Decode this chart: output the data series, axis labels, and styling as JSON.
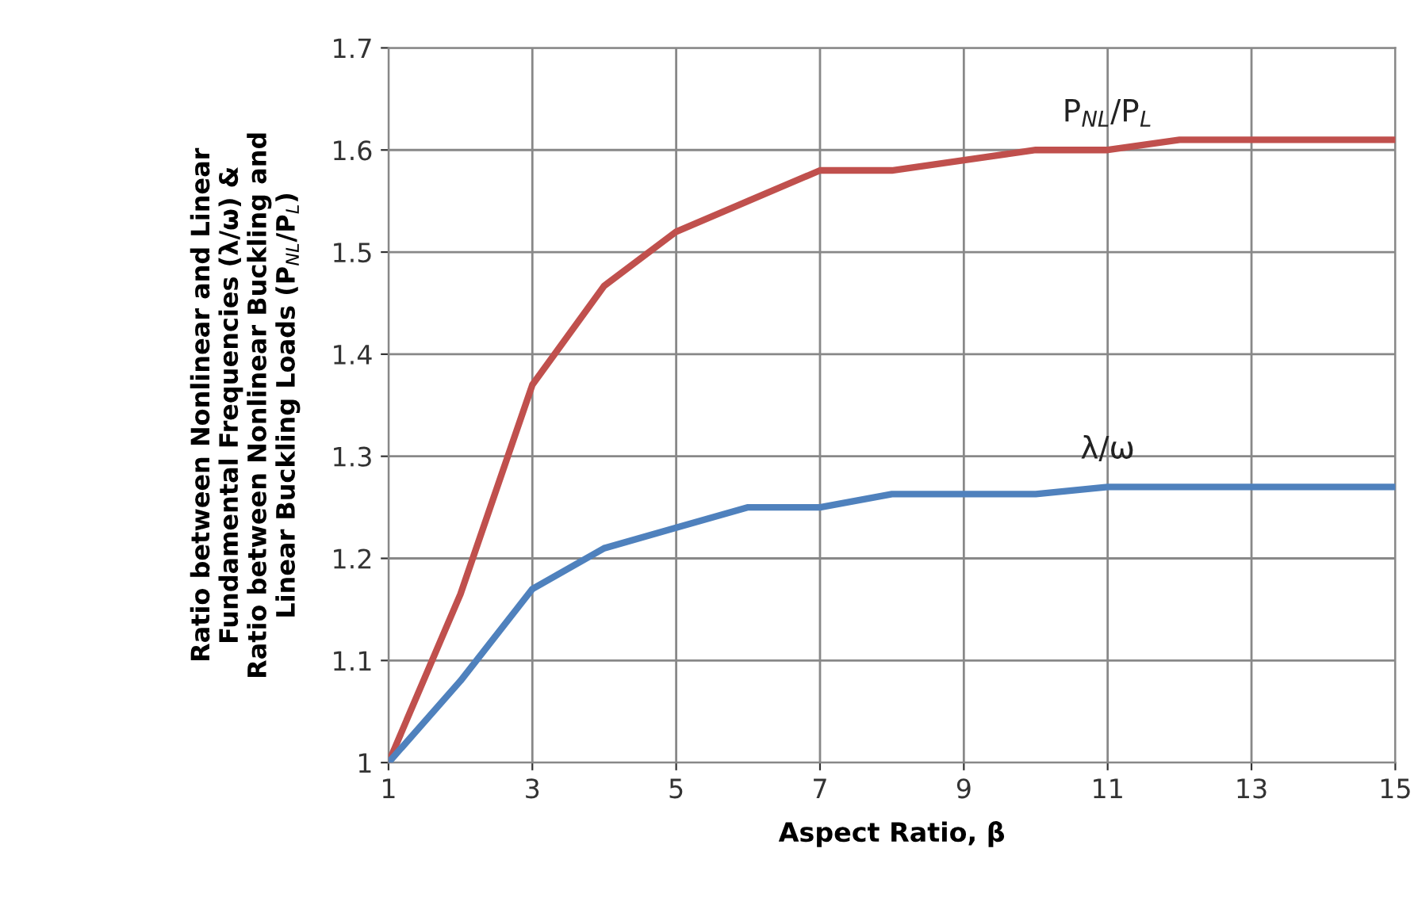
{
  "chart_data": {
    "type": "line",
    "xlabel": "Aspect Ratio, β",
    "ylabel": "Ratio between Nonlinear and Linear\nFundamental Frequencies (λ/ω) &\nRatio between Nonlinear Buckling and\nLinear Buckling Loads (P$_{NL}$/P$_{L}$)",
    "x": [
      1,
      2,
      3,
      4,
      5,
      6,
      7,
      8,
      9,
      10,
      11,
      12,
      13,
      14,
      15
    ],
    "series": [
      {
        "name": "P$_{NL}$/P$_{L}$",
        "color": "#c0504d",
        "values": [
          1.0,
          1.165,
          1.37,
          1.467,
          1.52,
          1.55,
          1.58,
          1.58,
          1.59,
          1.6,
          1.6,
          1.61,
          1.61,
          1.61,
          1.61
        ]
      },
      {
        "name": "λ/ω",
        "color": "#4f81bd",
        "values": [
          1.0,
          1.08,
          1.17,
          1.21,
          1.23,
          1.25,
          1.25,
          1.263,
          1.263,
          1.263,
          1.27,
          1.27,
          1.27,
          1.27,
          1.27
        ]
      }
    ],
    "xlim": [
      1,
      15
    ],
    "xticks": [
      1,
      3,
      5,
      7,
      9,
      11,
      13,
      15
    ],
    "ylim": [
      1,
      1.7
    ],
    "yticks": [
      1,
      1.1,
      1.2,
      1.3,
      1.4,
      1.5,
      1.6,
      1.7
    ],
    "grid": true,
    "legend": false,
    "marker": "none",
    "line_style": "solid"
  }
}
